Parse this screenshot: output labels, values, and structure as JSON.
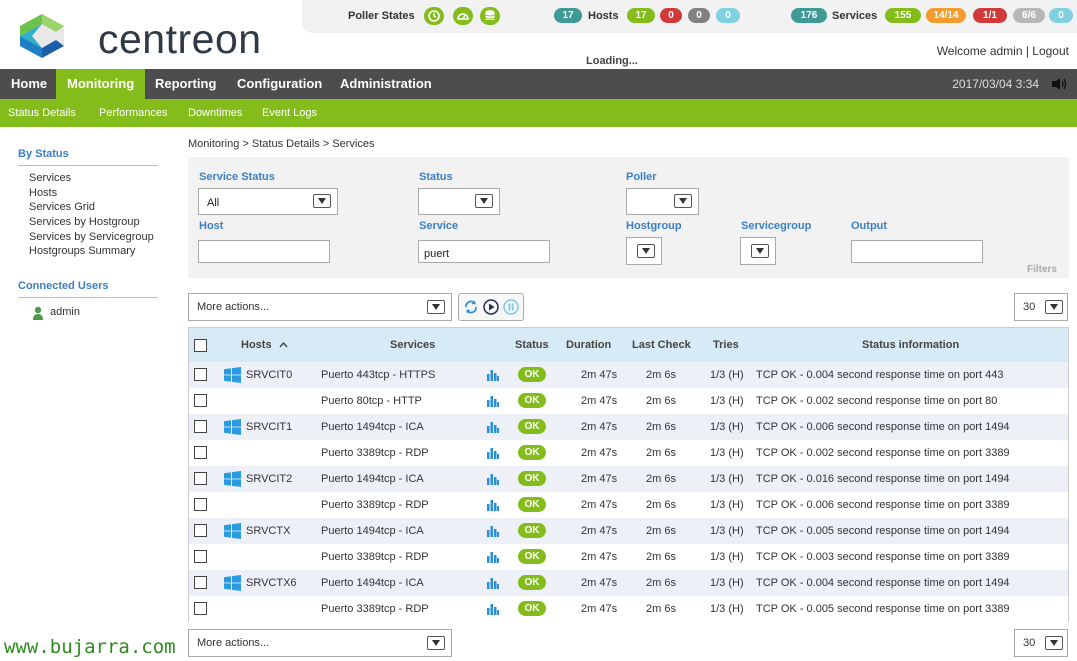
{
  "app": {
    "logo_text": "centreon"
  },
  "topbar": {
    "poller_label": "Poller States",
    "hosts_label": "Hosts",
    "hosts_total": "17",
    "hosts_up": "17",
    "hosts_down": "0",
    "hosts_unreachable": "0",
    "hosts_pending": "0",
    "services_label": "Services",
    "services_total": "176",
    "services_ok": "155",
    "services_warning": "14/14",
    "services_critical": "1/1",
    "services_unknown": "6/6",
    "services_pending": "0",
    "welcome": "Welcome admin | Logout",
    "loading": "Loading...",
    "colors": {
      "teal": "#3f9a96",
      "green": "#84bd1b",
      "red": "#d03a3a",
      "grey": "#818181",
      "lightblue": "#7fd0e0",
      "orange": "#f39c2d",
      "silver": "#b8b8b8"
    }
  },
  "nav": {
    "items": [
      "Home",
      "Monitoring",
      "Reporting",
      "Configuration",
      "Administration"
    ],
    "datetime": "2017/03/04 3:34",
    "sub_items": [
      "Status  Details",
      "Performances",
      "Downtimes",
      "Event  Logs"
    ]
  },
  "sidebar": {
    "by_status": "By Status",
    "links": [
      "Services",
      "Hosts",
      "Services Grid",
      "Services by Hostgroup",
      "Services by Servicegroup",
      "Hostgroups Summary"
    ],
    "connected_users": "Connected Users",
    "user": "admin"
  },
  "breadcrumb": "Monitoring  >  Status Details  >  Services",
  "filters": {
    "service_status_label": "Service Status",
    "service_status_value": "All",
    "status_label": "Status",
    "status_value": "",
    "poller_label": "Poller",
    "poller_value": "",
    "host_label": "Host",
    "host_value": "",
    "service_label": "Service",
    "service_value": "puert",
    "hostgroup_label": "Hostgroup",
    "servicegroup_label": "Servicegroup",
    "output_label": "Output",
    "output_value": "",
    "filters_word": "Filters"
  },
  "actions": {
    "more_actions": "More actions...",
    "page_size": "30"
  },
  "table": {
    "headers": [
      "Hosts",
      "Services",
      "Status",
      "Duration",
      "Last Check",
      "Tries",
      "Status information"
    ],
    "rows": [
      {
        "host": "SRVCIT0",
        "service": "Puerto 443tcp - HTTPS",
        "status": "OK",
        "duration": "2m 47s",
        "last_check": "2m 6s",
        "tries": "1/3 (H)",
        "info": "TCP OK - 0.004 second response time on port 443"
      },
      {
        "host": "",
        "service": "Puerto 80tcp - HTTP",
        "status": "OK",
        "duration": "2m 47s",
        "last_check": "2m 6s",
        "tries": "1/3 (H)",
        "info": "TCP OK - 0.002 second response time on port 80"
      },
      {
        "host": "SRVCIT1",
        "service": "Puerto 1494tcp - ICA",
        "status": "OK",
        "duration": "2m 47s",
        "last_check": "2m 6s",
        "tries": "1/3 (H)",
        "info": "TCP OK - 0.006 second response time on port 1494"
      },
      {
        "host": "",
        "service": "Puerto 3389tcp - RDP",
        "status": "OK",
        "duration": "2m 47s",
        "last_check": "2m 6s",
        "tries": "1/3 (H)",
        "info": "TCP OK - 0.002 second response time on port 3389"
      },
      {
        "host": "SRVCIT2",
        "service": "Puerto 1494tcp - ICA",
        "status": "OK",
        "duration": "2m 47s",
        "last_check": "2m 6s",
        "tries": "1/3 (H)",
        "info": "TCP OK - 0.016 second response time on port 1494"
      },
      {
        "host": "",
        "service": "Puerto 3389tcp - RDP",
        "status": "OK",
        "duration": "2m 47s",
        "last_check": "2m 6s",
        "tries": "1/3 (H)",
        "info": "TCP OK - 0.006 second response time on port 3389"
      },
      {
        "host": "SRVCTX",
        "service": "Puerto 1494tcp - ICA",
        "status": "OK",
        "duration": "2m 47s",
        "last_check": "2m 6s",
        "tries": "1/3 (H)",
        "info": "TCP OK - 0.005 second response time on port 1494"
      },
      {
        "host": "",
        "service": "Puerto 3389tcp - RDP",
        "status": "OK",
        "duration": "2m 47s",
        "last_check": "2m 6s",
        "tries": "1/3 (H)",
        "info": "TCP OK - 0.003 second response time on port 3389"
      },
      {
        "host": "SRVCTX6",
        "service": "Puerto 1494tcp - ICA",
        "status": "OK",
        "duration": "2m 47s",
        "last_check": "2m 6s",
        "tries": "1/3 (H)",
        "info": "TCP OK - 0.004 second response time on port 1494"
      },
      {
        "host": "",
        "service": "Puerto 3389tcp - RDP",
        "status": "OK",
        "duration": "2m 47s",
        "last_check": "2m 6s",
        "tries": "1/3 (H)",
        "info": "TCP OK - 0.005 second response time on port 3389"
      }
    ]
  },
  "watermark": "www.bujarra.com"
}
